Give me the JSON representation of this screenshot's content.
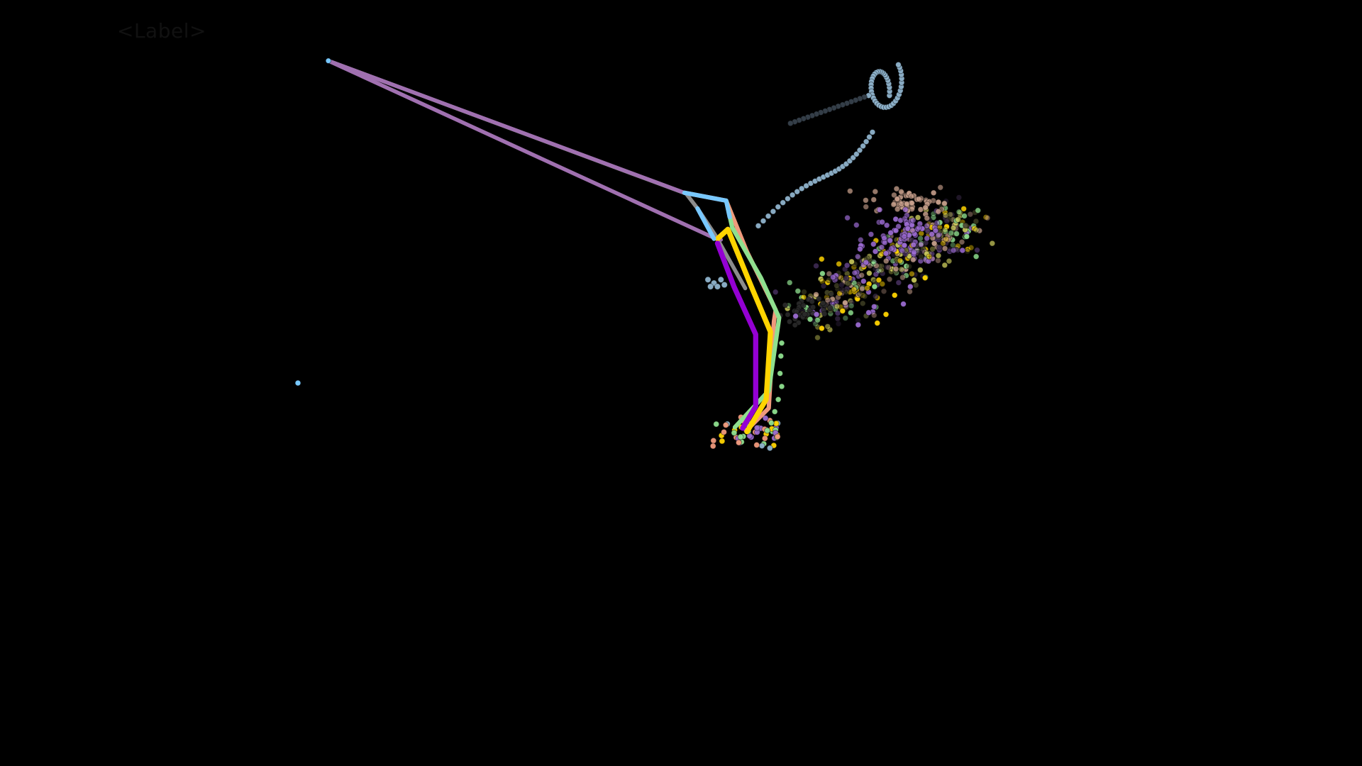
{
  "overlay": {
    "label_text": "<Label>"
  },
  "colors": {
    "background": "#000000",
    "label_text": "#111111",
    "skeleton_light_blue": "#78c8ff",
    "skeleton_salmon": "#f09a7c",
    "skeleton_green": "#8fe08f",
    "skeleton_yellow": "#ffd400",
    "skeleton_purple": "#9400d3",
    "skeleton_grey": "#8c8c8c",
    "skeleton_mauve": "#a070b0",
    "trail_blue_grey": "#8fb3cc",
    "cloud_olive": "#c8c85a",
    "cloud_violet": "#9a6ad0",
    "cloud_tan": "#c8a08c"
  },
  "icons": {
    "stray_point": "dot-icon"
  }
}
